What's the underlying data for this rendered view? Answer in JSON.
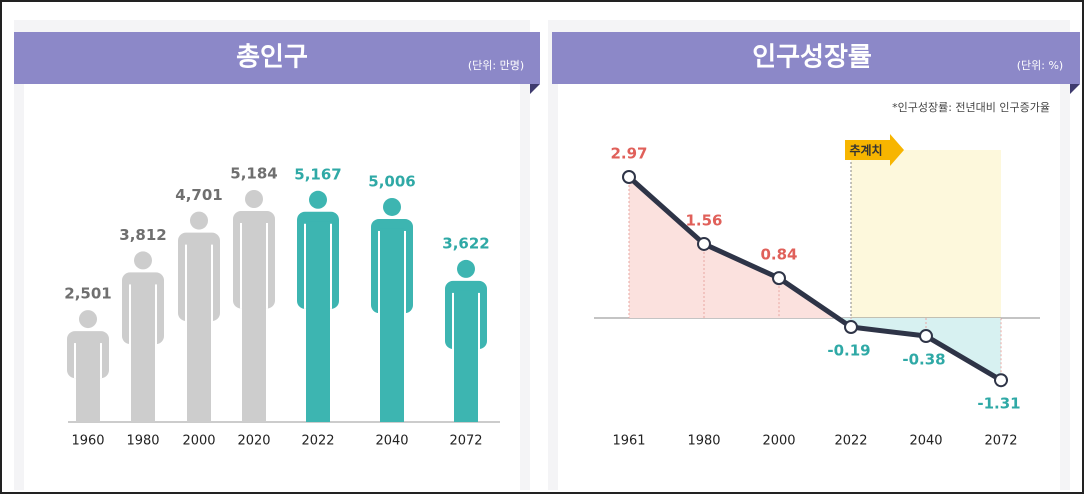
{
  "chart_data": [
    {
      "type": "bar",
      "title": "총인구",
      "unit": "(단위: 만명)",
      "categories": [
        "1960",
        "1980",
        "2000",
        "2020",
        "2022",
        "2040",
        "2072"
      ],
      "values": [
        2501,
        3812,
        4701,
        5184,
        5167,
        5006,
        3622
      ],
      "value_labels": [
        "2,501",
        "3,812",
        "4,701",
        "5,184",
        "5,167",
        "5,006",
        "3,622"
      ],
      "colors": [
        "#cdcdcd",
        "#cdcdcd",
        "#cdcdcd",
        "#cdcdcd",
        "#3db5b1",
        "#3db5b1",
        "#3db5b1"
      ],
      "label_colors": [
        "#6f6f6f",
        "#6f6f6f",
        "#6f6f6f",
        "#6f6f6f",
        "#2fa9a6",
        "#2fa9a6",
        "#2fa9a6"
      ]
    },
    {
      "type": "line",
      "title": "인구성장률",
      "unit": "(단위: %)",
      "note": "*인구성장률: 전년대비 인구증가율",
      "annotation": "추계치",
      "categories": [
        "1961",
        "1980",
        "2000",
        "2022",
        "2040",
        "2072"
      ],
      "values": [
        2.97,
        1.56,
        0.84,
        -0.19,
        -0.38,
        -1.31
      ],
      "color": "#2e3447",
      "positive_color": "#e0605a",
      "negative_color": "#2fa9a6"
    }
  ]
}
